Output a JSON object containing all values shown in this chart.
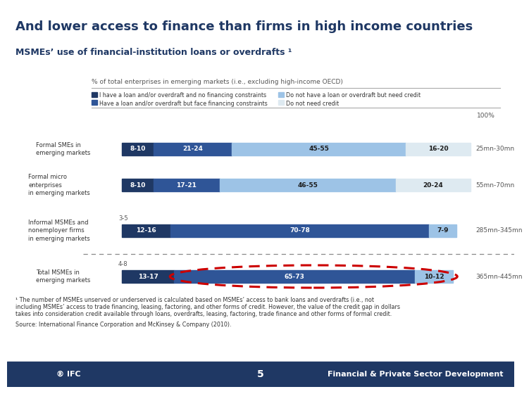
{
  "title": "And lower access to finance than firms in high income countries",
  "subtitle": "MSMEs’ use of financial-institution loans or overdrafts ¹",
  "chart_label": "% of total enterprises in emerging markets (i.e., excluding high-income OECD)",
  "legend": [
    {
      "label": "I have a loan and/or overdraft and no financing constraints",
      "color": "#1f3864"
    },
    {
      "label": "Do not have a loan or overdraft but need credit",
      "color": "#9dc3e6"
    },
    {
      "label": "Have a loan and/or overdraft but face financing constraints",
      "color": "#2f5597"
    },
    {
      "label": "Do not need credit",
      "color": "#deeaf1"
    }
  ],
  "rows": [
    {
      "label": "Formal SMEs in\nemerging markets",
      "values": [
        9,
        22.5,
        50,
        18.5
      ],
      "labels": [
        "8-10",
        "21-24",
        "45-55",
        "16-20"
      ],
      "annotation": "25mn-30mn",
      "above_label": null
    },
    {
      "label": "Formal micro\nenterprises\nin emerging markets",
      "values": [
        9,
        19,
        50.5,
        21.5
      ],
      "labels": [
        "8-10",
        "17-21",
        "46-55",
        "20-24"
      ],
      "annotation": "55mn-70mn",
      "above_label": null
    },
    {
      "label": "Informal MSMEs and\nnonemployer firms\nin emerging markets",
      "values": [
        14,
        74,
        8,
        0
      ],
      "labels": [
        "12-16",
        "70-78",
        "7-9",
        ""
      ],
      "annotation": "285mn-345mn",
      "above_label": "3-5",
      "highlight": false
    },
    {
      "label": "Total MSMEs in\nemerging markets",
      "values": [
        15,
        69,
        11,
        0
      ],
      "labels": [
        "13-17",
        "65-73",
        "10-12",
        ""
      ],
      "annotation": "365mn-445mn",
      "above_label": "4-8",
      "highlight": true
    }
  ],
  "footnote1": "¹ The number of MSMEs unserved or underserved is calculated based on MSMEs’ access to bank loans and overdrafts (i.e., not",
  "footnote2": "including MSMEs’ access to trade financing, leasing, factoring, and other forms of credit. However, the value of the credit gap in dollars",
  "footnote3": "takes into consideration credit available through loans, overdrafts, leasing, factoring, trade finance and other forms of formal credit.",
  "source": "Source: International Finance Corporation and McKinsey & Company (2010).",
  "percent100_label": "100%",
  "title_color": "#1f3864",
  "subtitle_color": "#1f3864",
  "bar_colors": [
    "#1f3864",
    "#2f5597",
    "#9dc3e6",
    "#deeaf1"
  ],
  "background_color": "#ffffff",
  "bottom_bar_color": "#1f3864",
  "separator_color": "#aaaaaa",
  "dashed_line_color": "#888888",
  "footnote_color": "#333333",
  "annotation_color": "#555555"
}
